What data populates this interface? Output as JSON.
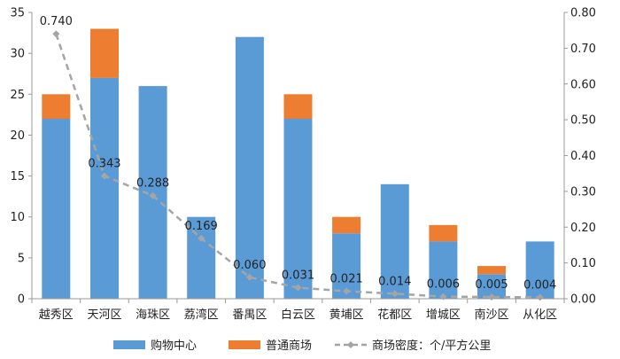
{
  "chart_data": {
    "type": "bar",
    "stacked": true,
    "categories": [
      "越秀区",
      "天河区",
      "海珠区",
      "荔湾区",
      "番禺区",
      "白云区",
      "黄埔区",
      "花都区",
      "增城区",
      "南沙区",
      "从化区"
    ],
    "series": [
      {
        "name": "购物中心",
        "type": "bar",
        "axis": "left",
        "color": "#5B9BD5",
        "values": [
          22,
          27,
          26,
          10,
          32,
          22,
          8,
          14,
          7,
          3,
          7
        ]
      },
      {
        "name": "普通商场",
        "type": "bar",
        "axis": "left",
        "color": "#ED7D31",
        "values": [
          3,
          6,
          0,
          0,
          0,
          3,
          2,
          0,
          2,
          1,
          0
        ]
      },
      {
        "name": "商场密度：个/平方公里",
        "type": "line",
        "axis": "right",
        "color": "#A5A5A5",
        "style": "dashed",
        "marker": "diamond",
        "values": [
          0.74,
          0.343,
          0.288,
          0.169,
          0.06,
          0.031,
          0.021,
          0.014,
          0.006,
          0.005,
          0.004
        ],
        "labels": [
          "0.740",
          "0.343",
          "0.288",
          "0.169",
          "0.060",
          "0.031",
          "0.021",
          "0.014",
          "0.006",
          "0.005",
          "0.004"
        ]
      }
    ],
    "ylim_left": [
      0,
      35
    ],
    "yticks_left": [
      "0",
      "5",
      "10",
      "15",
      "20",
      "25",
      "30",
      "35"
    ],
    "ylim_right": [
      0,
      0.8
    ],
    "yticks_right": [
      "0.00",
      "0.10",
      "0.20",
      "0.30",
      "0.40",
      "0.50",
      "0.60",
      "0.70",
      "0.80"
    ],
    "grid": false,
    "legend_position": "bottom"
  }
}
